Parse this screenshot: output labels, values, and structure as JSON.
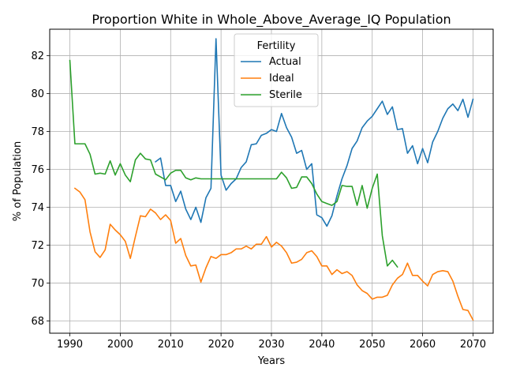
{
  "chart_data": {
    "type": "line",
    "title": "Proportion White in Whole_Above_Average_IQ Population",
    "xlabel": "Years",
    "ylabel": "% of Population",
    "xlim": [
      1986.0,
      2074.0
    ],
    "ylim": [
      67.35,
      83.4
    ],
    "xticks": [
      1990,
      2000,
      2010,
      2020,
      2030,
      2040,
      2050,
      2060,
      2070
    ],
    "yticks": [
      68,
      70,
      72,
      74,
      76,
      78,
      80,
      82
    ],
    "grid": true,
    "legend": {
      "title": "Fertility",
      "position": "top-center"
    },
    "series": [
      {
        "name": "Actual",
        "color": "#1f77b4",
        "x": [
          2007,
          2008,
          2009,
          2010,
          2011,
          2012,
          2013,
          2014,
          2015,
          2016,
          2017,
          2018,
          2019,
          2020,
          2021,
          2022,
          2023,
          2024,
          2025,
          2026,
          2027,
          2028,
          2029,
          2030,
          2031,
          2032,
          2033,
          2034,
          2035,
          2036,
          2037,
          2038,
          2039,
          2040,
          2041,
          2042,
          2043,
          2044,
          2045,
          2046,
          2047,
          2048,
          2049,
          2050,
          2051,
          2052,
          2053,
          2054,
          2055,
          2056,
          2057,
          2058,
          2059,
          2060,
          2061,
          2062,
          2063,
          2064,
          2065,
          2066,
          2067,
          2068,
          2069,
          2070
        ],
        "y": [
          76.4,
          76.6,
          75.15,
          75.15,
          74.3,
          74.85,
          73.9,
          73.35,
          74.0,
          73.2,
          74.5,
          75.0,
          82.9,
          75.7,
          74.9,
          75.25,
          75.5,
          76.1,
          76.4,
          77.3,
          77.35,
          77.8,
          77.9,
          78.1,
          78.0,
          78.95,
          78.2,
          77.7,
          76.85,
          77.0,
          76.0,
          76.3,
          73.6,
          73.45,
          73.0,
          73.55,
          74.6,
          75.5,
          76.2,
          77.1,
          77.5,
          78.2,
          78.55,
          78.8,
          79.2,
          79.6,
          78.9,
          79.3,
          78.1,
          78.15,
          76.85,
          77.25,
          76.3,
          77.1,
          76.35,
          77.45,
          78.0,
          78.7,
          79.2,
          79.45,
          79.1,
          79.7,
          78.75,
          79.7
        ]
      },
      {
        "name": "Ideal",
        "color": "#ff7f0e",
        "x": [
          1991,
          1992,
          1993,
          1994,
          1995,
          1996,
          1997,
          1998,
          1999,
          2000,
          2001,
          2002,
          2003,
          2004,
          2005,
          2006,
          2007,
          2008,
          2009,
          2010,
          2011,
          2012,
          2013,
          2014,
          2015,
          2016,
          2017,
          2018,
          2019,
          2020,
          2021,
          2022,
          2023,
          2024,
          2025,
          2026,
          2027,
          2028,
          2029,
          2030,
          2031,
          2032,
          2033,
          2034,
          2035,
          2036,
          2037,
          2038,
          2039,
          2040,
          2041,
          2042,
          2043,
          2044,
          2045,
          2046,
          2047,
          2048,
          2049,
          2050,
          2051,
          2052,
          2053,
          2054,
          2055,
          2056,
          2057,
          2058,
          2059,
          2060,
          2061,
          2062,
          2063,
          2064,
          2065,
          2066,
          2067,
          2068,
          2069,
          2070
        ],
        "y": [
          75.0,
          74.8,
          74.4,
          72.7,
          71.65,
          71.35,
          71.75,
          73.1,
          72.8,
          72.55,
          72.2,
          71.3,
          72.45,
          73.55,
          73.5,
          73.9,
          73.7,
          73.35,
          73.6,
          73.3,
          72.1,
          72.35,
          71.45,
          70.9,
          70.95,
          70.05,
          70.8,
          71.4,
          71.3,
          71.5,
          71.5,
          71.6,
          71.8,
          71.8,
          71.95,
          71.8,
          72.05,
          72.05,
          72.45,
          71.9,
          72.15,
          71.95,
          71.6,
          71.05,
          71.1,
          71.25,
          71.6,
          71.7,
          71.4,
          70.9,
          70.9,
          70.45,
          70.7,
          70.5,
          70.6,
          70.4,
          69.9,
          69.6,
          69.45,
          69.15,
          69.25,
          69.25,
          69.35,
          69.9,
          70.25,
          70.45,
          71.05,
          70.4,
          70.4,
          70.1,
          69.85,
          70.45,
          70.6,
          70.65,
          70.6,
          70.1,
          69.3,
          68.6,
          68.55,
          68.05
        ]
      },
      {
        "name": "Sterile",
        "color": "#2ca02c",
        "x": [
          1990,
          1991,
          1992,
          1993,
          1994,
          1995,
          1996,
          1997,
          1998,
          1999,
          2000,
          2001,
          2002,
          2003,
          2004,
          2005,
          2006,
          2007,
          2008,
          2009,
          2010,
          2011,
          2012,
          2013,
          2014,
          2015,
          2016,
          2017,
          2018,
          2019,
          2020,
          2021,
          2022,
          2023,
          2024,
          2025,
          2026,
          2027,
          2028,
          2029,
          2030,
          2031,
          2032,
          2033,
          2034,
          2035,
          2036,
          2037,
          2038,
          2039,
          2040,
          2041,
          2042,
          2043,
          2044,
          2045,
          2046,
          2047,
          2048,
          2049,
          2050,
          2051,
          2052,
          2053,
          2054,
          2055
        ],
        "y": [
          81.75,
          77.35,
          77.35,
          77.35,
          76.8,
          75.75,
          75.8,
          75.75,
          76.45,
          75.7,
          76.3,
          75.7,
          75.35,
          76.5,
          76.85,
          76.55,
          76.5,
          75.75,
          75.6,
          75.45,
          75.8,
          75.95,
          75.95,
          75.55,
          75.45,
          75.55,
          75.5,
          75.5,
          75.5,
          75.5,
          75.5,
          75.5,
          75.5,
          75.5,
          75.5,
          75.5,
          75.5,
          75.5,
          75.5,
          75.5,
          75.5,
          75.5,
          75.85,
          75.55,
          75.0,
          75.05,
          75.6,
          75.6,
          75.25,
          74.7,
          74.3,
          74.2,
          74.1,
          74.3,
          75.15,
          75.1,
          75.1,
          74.1,
          75.15,
          73.95,
          75.0,
          75.75,
          72.5,
          70.9,
          71.2,
          70.85
        ]
      }
    ]
  }
}
